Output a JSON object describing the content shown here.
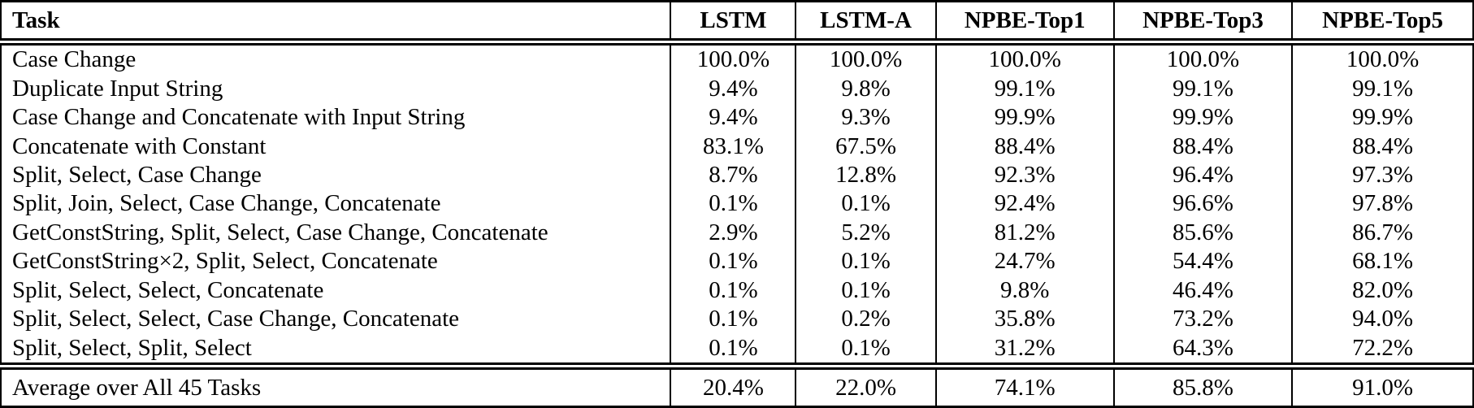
{
  "table": {
    "columns": [
      "Task",
      "LSTM",
      "LSTM-A",
      "NPBE-Top1",
      "NPBE-Top3",
      "NPBE-Top5"
    ],
    "rows": [
      [
        "Case Change",
        "100.0%",
        "100.0%",
        "100.0%",
        "100.0%",
        "100.0%"
      ],
      [
        "Duplicate Input String",
        "9.4%",
        "9.8%",
        "99.1%",
        "99.1%",
        "99.1%"
      ],
      [
        "Case Change and Concatenate with Input String",
        "9.4%",
        "9.3%",
        "99.9%",
        "99.9%",
        "99.9%"
      ],
      [
        "Concatenate with Constant",
        "83.1%",
        "67.5%",
        "88.4%",
        "88.4%",
        "88.4%"
      ],
      [
        "Split, Select, Case Change",
        "8.7%",
        "12.8%",
        "92.3%",
        "96.4%",
        "97.3%"
      ],
      [
        "Split, Join, Select, Case Change, Concatenate",
        "0.1%",
        "0.1%",
        "92.4%",
        "96.6%",
        "97.8%"
      ],
      [
        "GetConstString, Split, Select, Case Change, Concatenate",
        "2.9%",
        "5.2%",
        "81.2%",
        "85.6%",
        "86.7%"
      ],
      [
        "GetConstString×2, Split, Select, Concatenate",
        "0.1%",
        "0.1%",
        "24.7%",
        "54.4%",
        "68.1%"
      ],
      [
        "Split, Select, Select, Concatenate",
        "0.1%",
        "0.1%",
        "9.8%",
        "46.4%",
        "82.0%"
      ],
      [
        "Split, Select, Select, Case Change, Concatenate",
        "0.1%",
        "0.2%",
        "35.8%",
        "73.2%",
        "94.0%"
      ],
      [
        "Split, Select, Split, Select",
        "0.1%",
        "0.1%",
        "31.2%",
        "64.3%",
        "72.2%"
      ]
    ],
    "footer": [
      "Average over All 45 Tasks",
      "20.4%",
      "22.0%",
      "74.1%",
      "85.8%",
      "91.0%"
    ],
    "colors": {
      "text": "#000000",
      "background": "#ffffff",
      "rule": "#000000"
    }
  }
}
